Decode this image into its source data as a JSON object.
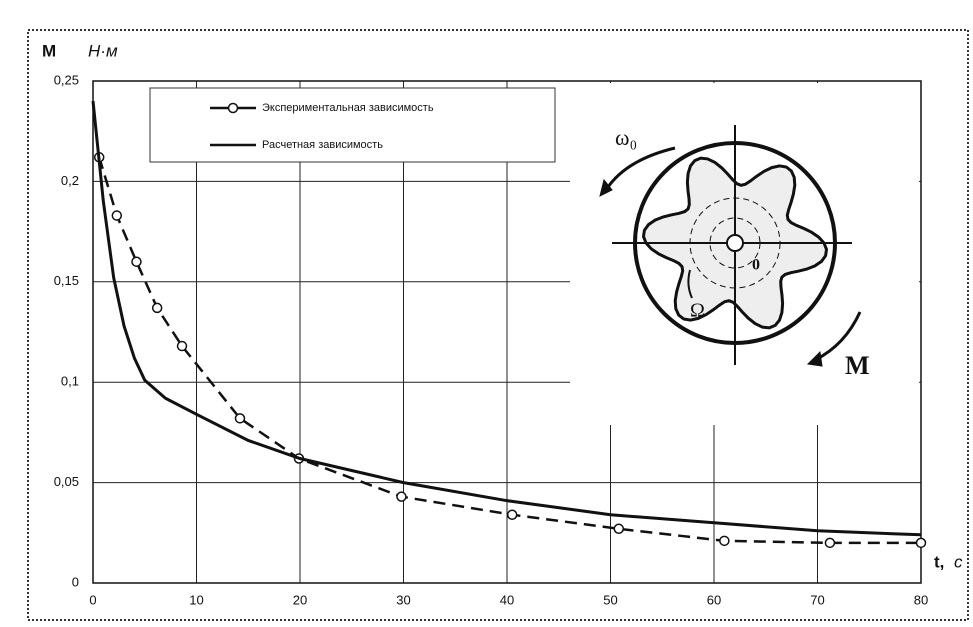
{
  "chart_data": {
    "type": "line",
    "y_label": "М",
    "y_unit": "Н·м",
    "x_label": "t,",
    "x_unit": "с",
    "xlim": [
      0,
      80
    ],
    "xticks": [
      0,
      10,
      20,
      30,
      40,
      50,
      60,
      70,
      80
    ],
    "ylim": [
      0,
      0.25
    ],
    "yticks": [
      0,
      {
        "value": 0.05,
        "label": "0,05"
      },
      {
        "value": 0.1,
        "label": "0,1"
      },
      {
        "value": 0.15,
        "label": "0,15"
      },
      {
        "value": 0.2,
        "label": "0,2"
      },
      {
        "value": 0.25,
        "label": "0,25"
      }
    ],
    "grid": true,
    "series": [
      {
        "name": "Экспериментальная зависимость",
        "color": "#111",
        "style": "dashed",
        "marker": "circle",
        "x": [
          0.6,
          2.3,
          4.2,
          6.2,
          8.6,
          14.2,
          19.9,
          29.8,
          40.5,
          50.8,
          61,
          71.2,
          80
        ],
        "values": [
          0.212,
          0.183,
          0.16,
          0.137,
          0.118,
          0.082,
          0.062,
          0.043,
          0.034,
          0.027,
          0.021,
          0.02,
          0.02
        ]
      },
      {
        "name": "Расчетная зависимость",
        "color": "#111",
        "style": "solid",
        "marker": "none",
        "x": [
          0,
          1,
          2,
          3,
          4,
          5,
          7,
          10,
          15,
          20,
          30,
          40,
          50,
          60,
          70,
          80
        ],
        "values": [
          0.24,
          0.19,
          0.152,
          0.128,
          0.112,
          0.101,
          0.092,
          0.084,
          0.071,
          0.062,
          0.05,
          0.041,
          0.034,
          0.03,
          0.026,
          0.024
        ]
      }
    ],
    "annotations": [
      "ω₀",
      "Ω",
      "0",
      "М"
    ]
  }
}
